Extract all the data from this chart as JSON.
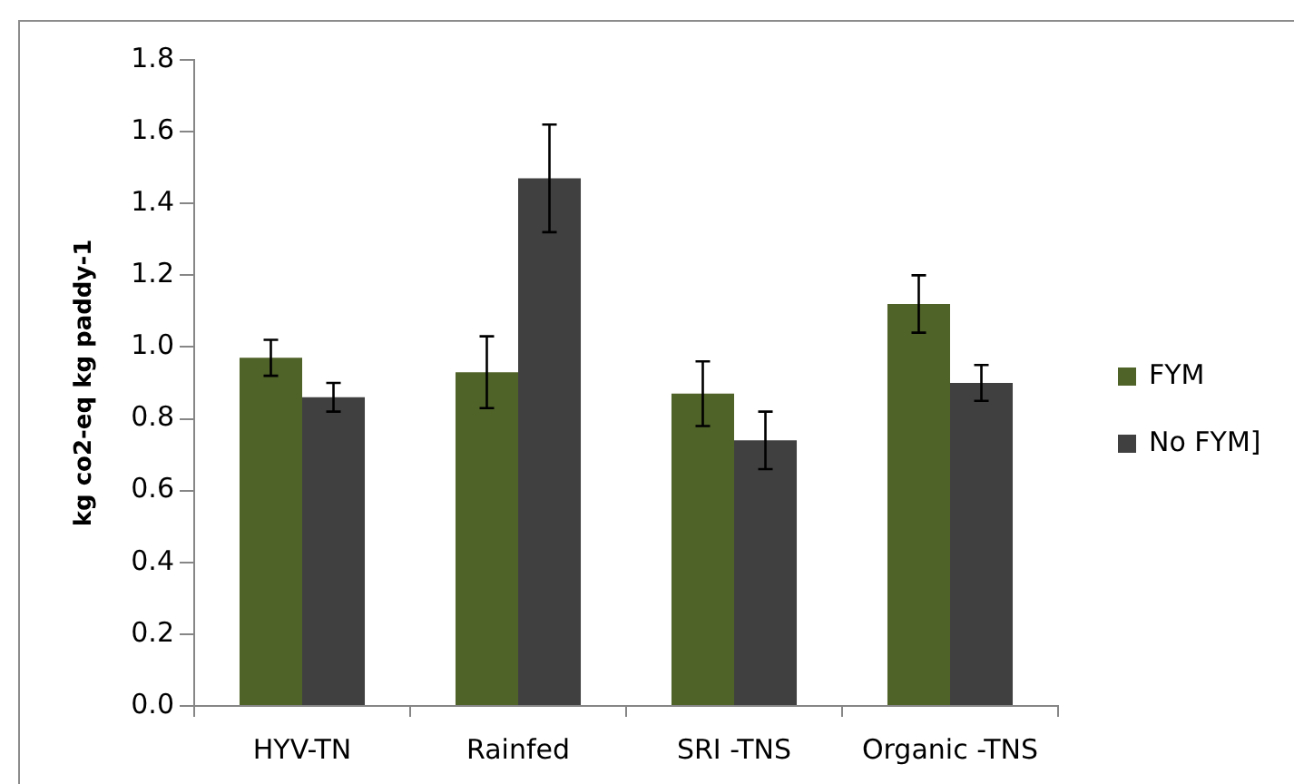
{
  "chart_data": {
    "type": "bar",
    "ylabel": "kg co2-eq kg paddy-1",
    "categories": [
      "HYV-TN",
      "Rainfed",
      "SRI -TNS",
      "Organic -TNS"
    ],
    "series": [
      {
        "name": "FYM",
        "color": "#4f6228",
        "values": [
          0.97,
          0.93,
          0.87,
          1.12
        ],
        "errors": [
          0.05,
          0.1,
          0.09,
          0.08
        ]
      },
      {
        "name": "No FYM]",
        "color": "#404040",
        "values": [
          0.86,
          1.47,
          0.74,
          0.9
        ],
        "errors": [
          0.04,
          0.15,
          0.08,
          0.05
        ]
      }
    ],
    "ylim": [
      0,
      1.8
    ],
    "yticks": [
      {
        "value": 0,
        "label": "0.0"
      },
      0.2,
      0.4,
      0.6,
      0.8,
      {
        "value": 1,
        "label": "1.0"
      },
      1.2,
      1.4,
      1.6,
      1.8
    ],
    "grid": false,
    "legend": "right"
  }
}
